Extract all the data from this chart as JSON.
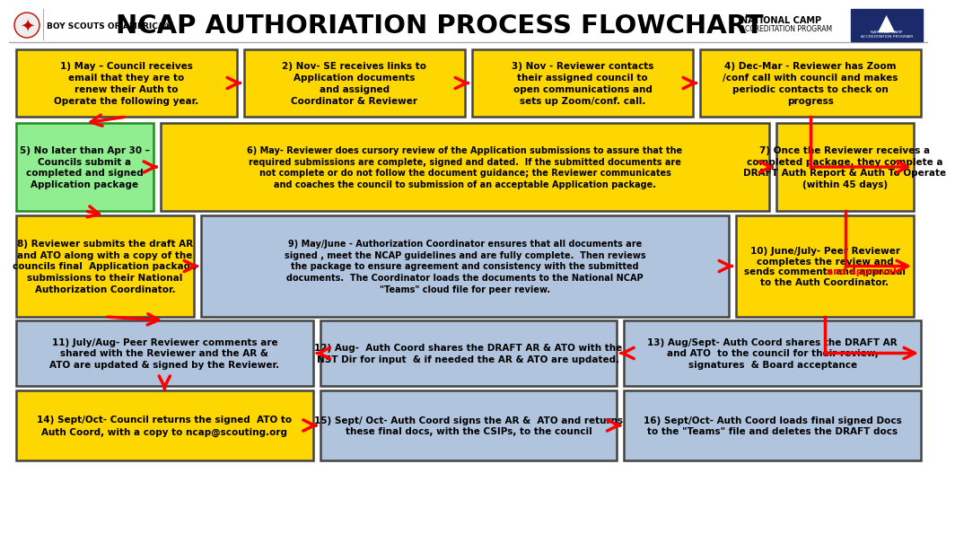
{
  "title": "NCAP AUTHORIATION PROCESS FLOWCHART",
  "bg_color": "#FFFFFF",
  "title_fontsize": 21,
  "boxes": [
    {
      "id": 1,
      "row": 0,
      "col": 0,
      "color": "#FFD700",
      "text": "1) May – Council receives\nemail that they are to\nrenew their Auth to\nOperate the following year."
    },
    {
      "id": 2,
      "row": 0,
      "col": 1,
      "color": "#FFD700",
      "text": "2) Nov- SE receives links to\nApplication documents\nand assigned\nCoordinator & Reviewer"
    },
    {
      "id": 3,
      "row": 0,
      "col": 2,
      "color": "#FFD700",
      "text": "3) Nov - Reviewer contacts\ntheir assigned council to\nopen communications and\nsets up Zoom/conf. call."
    },
    {
      "id": 4,
      "row": 0,
      "col": 3,
      "color": "#FFD700",
      "text": "4) Dec-Mar - Reviewer has Zoom\n/conf call with council and makes\nperiodic contacts to check on\nprogress"
    },
    {
      "id": 5,
      "row": 1,
      "col": 0,
      "color": "#90EE90",
      "text": "5) No later than Apr 30 –\nCouncils submit a\ncompleted and signed\nApplication package"
    },
    {
      "id": 6,
      "row": 1,
      "col": 1,
      "color": "#FFD700",
      "wide": true,
      "text": "6) May- Reviewer does cursory review of the Application submissions to assure that the\nrequired submissions are complete, signed and dated.  If the submitted documents are\nnot complete or do not follow the document guidance; the Reviewer communicates\nand coaches the council to submission of an acceptable Application package."
    },
    {
      "id": 7,
      "row": 1,
      "col": 3,
      "color": "#FFD700",
      "text": "7) Once the Reviewer receives a\ncompleted package, they complete a\nDRAFT Auth Report & Auth To Operate\n(within 45 days)"
    },
    {
      "id": 8,
      "row": 2,
      "col": 0,
      "color": "#FFD700",
      "text": "8) Reviewer submits the draft AR\nand ATO along with a copy of the\ncouncils final  Application package\nsubmissions to their National\nAuthorization Coordinator."
    },
    {
      "id": 9,
      "row": 2,
      "col": 1,
      "color": "#B0C4DE",
      "wide": true,
      "text": "9) May/June - Authorization Coordinator ensures that all documents are\nsigned , meet the NCAP guidelines and are fully complete.  Then reviews\nthe package to ensure agreement and consistency with the submitted\ndocuments.  The Coordinator loads the documents to the National NCAP\n\"Teams\" cloud file for peer review."
    },
    {
      "id": 10,
      "row": 2,
      "col": 3,
      "color": "#FFD700",
      "text": "10) June/July- Peer Reviewer\ncompletes the review and\nsends comments and approval\nto the Auth Coordinator.",
      "red_phrase": "and approval"
    },
    {
      "id": 11,
      "row": 3,
      "col": 0,
      "color": "#B0C4DE",
      "text": "11) July/Aug- Peer Reviewer comments are\nshared with the Reviewer and the AR &\nATO are updated & signed by the Reviewer."
    },
    {
      "id": 12,
      "row": 3,
      "col": 1,
      "color": "#B0C4DE",
      "text": "12) Aug-  Auth Coord shares the DRAFT AR & ATO with the\nNST Dir for input  & if needed the AR & ATO are updated."
    },
    {
      "id": 13,
      "row": 3,
      "col": 2,
      "color": "#B0C4DE",
      "text": "13) Aug/Sept- Auth Coord shares the DRAFT AR\nand ATO  to the council for their review,\nsignatures  & Board acceptance"
    },
    {
      "id": 14,
      "row": 4,
      "col": 0,
      "color": "#FFD700",
      "text": "14) Sept/Oct- Council returns the signed  ATO to\nAuth Coord, with a copy to ncap@scouting.org"
    },
    {
      "id": 15,
      "row": 4,
      "col": 1,
      "color": "#B0C4DE",
      "text": "15) Sept/ Oct- Auth Coord signs the AR &  ATO and returns\nthese final docs, with the CSIPs, to the council"
    },
    {
      "id": 16,
      "row": 4,
      "col": 2,
      "color": "#B0C4DE",
      "text": "16) Sept/Oct- Auth Coord loads final signed Docs\nto the \"Teams\" file and deletes the DRAFT docs"
    }
  ]
}
